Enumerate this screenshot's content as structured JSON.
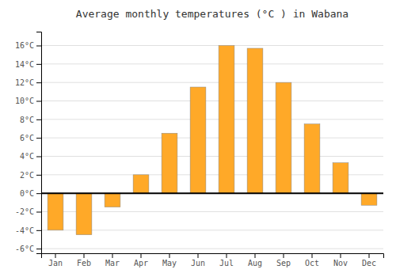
{
  "chart_data": {
    "type": "bar",
    "title": "Average monthly temperatures (°C ) in Wabana",
    "categories": [
      "Jan",
      "Feb",
      "Mar",
      "Apr",
      "May",
      "Jun",
      "Jul",
      "Aug",
      "Sep",
      "Oct",
      "Nov",
      "Dec"
    ],
    "values": [
      -4.0,
      -4.5,
      -1.5,
      2.0,
      6.5,
      11.5,
      16.0,
      15.7,
      12.0,
      7.5,
      3.3,
      -1.3
    ],
    "color": "#FFA928",
    "ylim": [
      -6.5,
      17.5
    ],
    "yticks": [
      {
        "value": -6,
        "label": "-6°C"
      },
      {
        "value": -4,
        "label": "-4°C"
      },
      {
        "value": -2,
        "label": "-2°C"
      },
      {
        "value": 0,
        "label": "0°C"
      },
      {
        "value": 2,
        "label": "2°C"
      },
      {
        "value": 4,
        "label": "4°C"
      },
      {
        "value": 6,
        "label": "6°C"
      },
      {
        "value": 8,
        "label": "8°C"
      },
      {
        "value": 10,
        "label": "10°C"
      },
      {
        "value": 12,
        "label": "12°C"
      },
      {
        "value": 14,
        "label": "14°C"
      },
      {
        "value": 16,
        "label": "16°C"
      }
    ],
    "grid": true
  }
}
